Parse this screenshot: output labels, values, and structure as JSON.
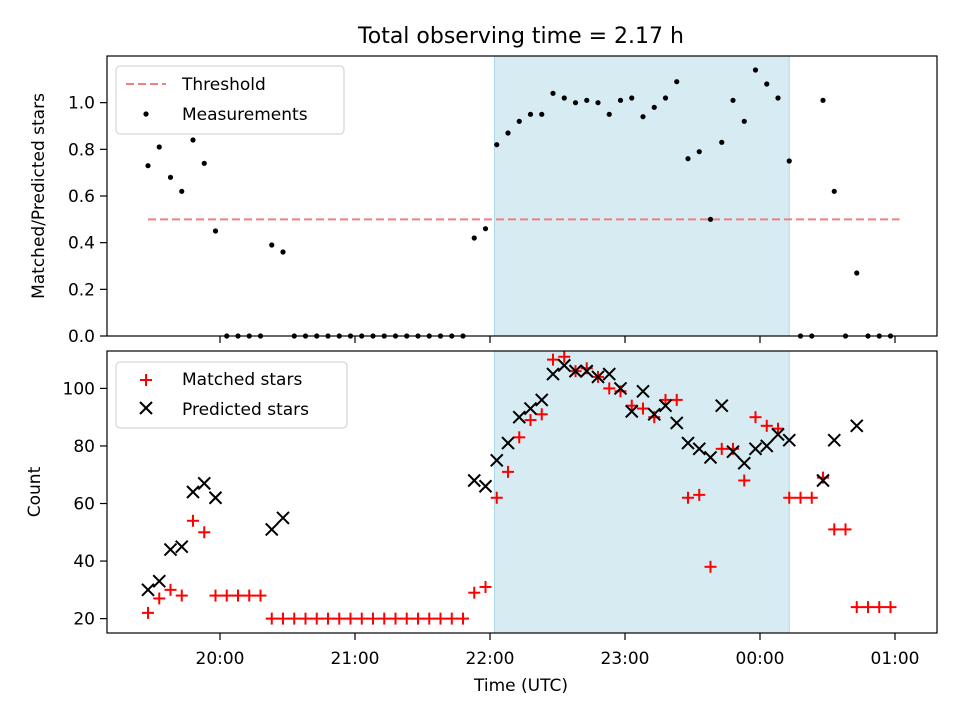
{
  "figure": {
    "title": "Total observing time = 2.17 h",
    "xlabel": "Time (UTC)",
    "x_tick_labels": [
      "20:00",
      "21:00",
      "22:00",
      "23:00",
      "00:00",
      "01:00"
    ],
    "highlight_color": "#add8e6"
  },
  "chart_data": [
    {
      "type": "scatter",
      "ylabel": "Matched/Predicted stars",
      "ylim": [
        0,
        1.2
      ],
      "yticks": [
        "0.0",
        "0.2",
        "0.4",
        "0.6",
        "0.8",
        "1.0"
      ],
      "legend_position": "upper-left",
      "highlight_span": [
        "22:02",
        "00:13"
      ],
      "threshold": {
        "name": "Threshold",
        "value": 0.5,
        "x_range": [
          "19:28",
          "01:02"
        ],
        "color": "#f08080"
      },
      "series": [
        {
          "name": "Measurements",
          "color": "#000000",
          "points": [
            [
              "19:28",
              0.73
            ],
            [
              "19:33",
              0.81
            ],
            [
              "19:38",
              0.68
            ],
            [
              "19:43",
              0.62
            ],
            [
              "19:48",
              0.84
            ],
            [
              "19:53",
              0.74
            ],
            [
              "19:58",
              0.45
            ],
            [
              "20:03",
              0.0
            ],
            [
              "20:08",
              0.0
            ],
            [
              "20:13",
              0.0
            ],
            [
              "20:18",
              0.0
            ],
            [
              "20:23",
              0.39
            ],
            [
              "20:28",
              0.36
            ],
            [
              "20:33",
              0.0
            ],
            [
              "20:38",
              0.0
            ],
            [
              "20:43",
              0.0
            ],
            [
              "20:48",
              0.0
            ],
            [
              "20:53",
              0.0
            ],
            [
              "20:58",
              0.0
            ],
            [
              "21:03",
              0.0
            ],
            [
              "21:08",
              0.0
            ],
            [
              "21:13",
              0.0
            ],
            [
              "21:18",
              0.0
            ],
            [
              "21:23",
              0.0
            ],
            [
              "21:28",
              0.0
            ],
            [
              "21:33",
              0.0
            ],
            [
              "21:38",
              0.0
            ],
            [
              "21:43",
              0.0
            ],
            [
              "21:48",
              0.0
            ],
            [
              "21:53",
              0.42
            ],
            [
              "21:58",
              0.46
            ],
            [
              "22:03",
              0.82
            ],
            [
              "22:08",
              0.87
            ],
            [
              "22:13",
              0.92
            ],
            [
              "22:18",
              0.95
            ],
            [
              "22:23",
              0.95
            ],
            [
              "22:28",
              1.04
            ],
            [
              "22:33",
              1.02
            ],
            [
              "22:38",
              1.0
            ],
            [
              "22:43",
              1.01
            ],
            [
              "22:48",
              1.0
            ],
            [
              "22:53",
              0.95
            ],
            [
              "22:58",
              1.01
            ],
            [
              "23:03",
              1.02
            ],
            [
              "23:08",
              0.94
            ],
            [
              "23:13",
              0.98
            ],
            [
              "23:18",
              1.02
            ],
            [
              "23:23",
              1.09
            ],
            [
              "23:28",
              0.76
            ],
            [
              "23:33",
              0.79
            ],
            [
              "23:38",
              0.5
            ],
            [
              "23:43",
              0.83
            ],
            [
              "23:48",
              1.01
            ],
            [
              "23:53",
              0.92
            ],
            [
              "23:58",
              1.14
            ],
            [
              "00:03",
              1.08
            ],
            [
              "00:08",
              1.02
            ],
            [
              "00:13",
              0.75
            ],
            [
              "00:18",
              0.0
            ],
            [
              "00:23",
              0.0
            ],
            [
              "00:28",
              1.01
            ],
            [
              "00:33",
              0.62
            ],
            [
              "00:38",
              0.0
            ],
            [
              "00:43",
              0.27
            ],
            [
              "00:48",
              0.0
            ],
            [
              "00:53",
              0.0
            ],
            [
              "00:58",
              0.0
            ]
          ]
        }
      ]
    },
    {
      "type": "scatter",
      "ylabel": "Count",
      "ylim": [
        15,
        113
      ],
      "yticks": [
        "20",
        "40",
        "60",
        "80",
        "100"
      ],
      "legend_position": "upper-left",
      "highlight_span": [
        "22:02",
        "00:13"
      ],
      "series": [
        {
          "name": "Matched stars",
          "marker": "plus",
          "color": "#ff0000",
          "points": [
            [
              "19:28",
              22
            ],
            [
              "19:33",
              27
            ],
            [
              "19:38",
              30
            ],
            [
              "19:43",
              28
            ],
            [
              "19:48",
              54
            ],
            [
              "19:53",
              50
            ],
            [
              "19:58",
              28
            ],
            [
              "20:03",
              28
            ],
            [
              "20:08",
              28
            ],
            [
              "20:13",
              28
            ],
            [
              "20:18",
              28
            ],
            [
              "20:23",
              20
            ],
            [
              "20:28",
              20
            ],
            [
              "20:33",
              20
            ],
            [
              "20:38",
              20
            ],
            [
              "20:43",
              20
            ],
            [
              "20:48",
              20
            ],
            [
              "20:53",
              20
            ],
            [
              "20:58",
              20
            ],
            [
              "21:03",
              20
            ],
            [
              "21:08",
              20
            ],
            [
              "21:13",
              20
            ],
            [
              "21:18",
              20
            ],
            [
              "21:23",
              20
            ],
            [
              "21:28",
              20
            ],
            [
              "21:33",
              20
            ],
            [
              "21:38",
              20
            ],
            [
              "21:43",
              20
            ],
            [
              "21:48",
              20
            ],
            [
              "21:53",
              29
            ],
            [
              "21:58",
              31
            ],
            [
              "22:03",
              62
            ],
            [
              "22:08",
              71
            ],
            [
              "22:13",
              83
            ],
            [
              "22:18",
              89
            ],
            [
              "22:23",
              91
            ],
            [
              "22:28",
              110
            ],
            [
              "22:33",
              111
            ],
            [
              "22:38",
              106
            ],
            [
              "22:43",
              107
            ],
            [
              "22:48",
              104
            ],
            [
              "22:53",
              100
            ],
            [
              "22:58",
              99
            ],
            [
              "23:03",
              94
            ],
            [
              "23:08",
              93
            ],
            [
              "23:13",
              90
            ],
            [
              "23:18",
              96
            ],
            [
              "23:23",
              96
            ],
            [
              "23:28",
              62
            ],
            [
              "23:33",
              63
            ],
            [
              "23:38",
              38
            ],
            [
              "23:43",
              79
            ],
            [
              "23:48",
              79
            ],
            [
              "23:53",
              68
            ],
            [
              "23:58",
              90
            ],
            [
              "00:03",
              87
            ],
            [
              "00:08",
              86
            ],
            [
              "00:13",
              62
            ],
            [
              "00:18",
              62
            ],
            [
              "00:23",
              62
            ],
            [
              "00:28",
              69
            ],
            [
              "00:33",
              51
            ],
            [
              "00:38",
              51
            ],
            [
              "00:43",
              24
            ],
            [
              "00:48",
              24
            ],
            [
              "00:53",
              24
            ],
            [
              "00:58",
              24
            ]
          ]
        },
        {
          "name": "Predicted stars",
          "marker": "x",
          "color": "#000000",
          "points": [
            [
              "19:28",
              30
            ],
            [
              "19:33",
              33
            ],
            [
              "19:38",
              44
            ],
            [
              "19:43",
              45
            ],
            [
              "19:48",
              64
            ],
            [
              "19:53",
              67
            ],
            [
              "19:58",
              62
            ],
            [
              "20:23",
              51
            ],
            [
              "20:28",
              55
            ],
            [
              "21:53",
              68
            ],
            [
              "21:58",
              66
            ],
            [
              "22:03",
              75
            ],
            [
              "22:08",
              81
            ],
            [
              "22:13",
              90
            ],
            [
              "22:18",
              93
            ],
            [
              "22:23",
              96
            ],
            [
              "22:28",
              105
            ],
            [
              "22:33",
              108
            ],
            [
              "22:38",
              106
            ],
            [
              "22:43",
              106
            ],
            [
              "22:48",
              104
            ],
            [
              "22:53",
              105
            ],
            [
              "22:58",
              100
            ],
            [
              "23:03",
              92
            ],
            [
              "23:08",
              99
            ],
            [
              "23:13",
              91
            ],
            [
              "23:18",
              94
            ],
            [
              "23:23",
              88
            ],
            [
              "23:28",
              81
            ],
            [
              "23:33",
              79
            ],
            [
              "23:38",
              76
            ],
            [
              "23:43",
              94
            ],
            [
              "23:48",
              78
            ],
            [
              "23:53",
              74
            ],
            [
              "23:58",
              79
            ],
            [
              "00:03",
              80
            ],
            [
              "00:08",
              84
            ],
            [
              "00:13",
              82
            ],
            [
              "00:28",
              68
            ],
            [
              "00:33",
              82
            ],
            [
              "00:43",
              87
            ]
          ]
        }
      ]
    }
  ]
}
